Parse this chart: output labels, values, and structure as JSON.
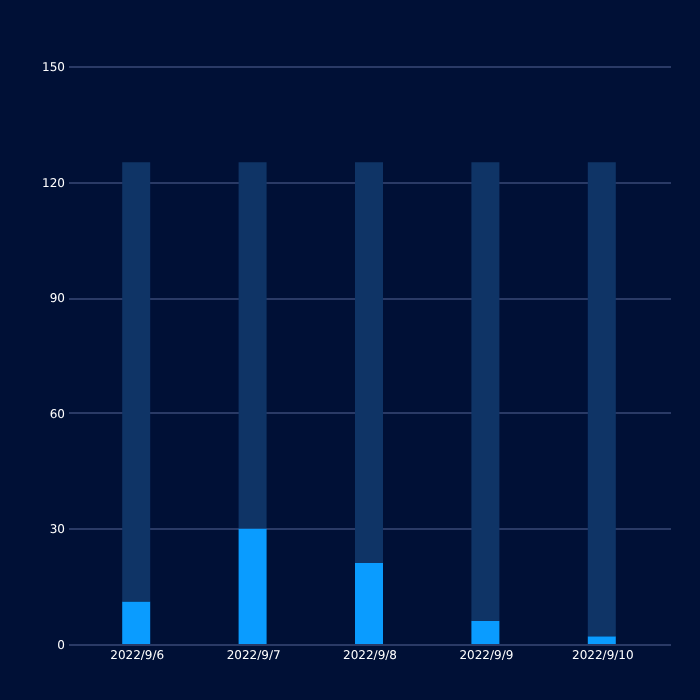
{
  "chart_data": {
    "type": "bar",
    "stacked": true,
    "categories": [
      "2022/9/6",
      "2022/9/7",
      "2022/9/8",
      "2022/9/9",
      "2022/9/10"
    ],
    "series": [
      {
        "color": "#0a9cff",
        "values": [
          11,
          30,
          21,
          6,
          2
        ]
      },
      {
        "color": "#0f3466",
        "values": [
          114,
          95,
          104,
          119,
          123
        ]
      }
    ],
    "ylim": [
      0,
      150
    ],
    "yticks": [
      0,
      30,
      60,
      90,
      120,
      150
    ],
    "grid": "y"
  }
}
